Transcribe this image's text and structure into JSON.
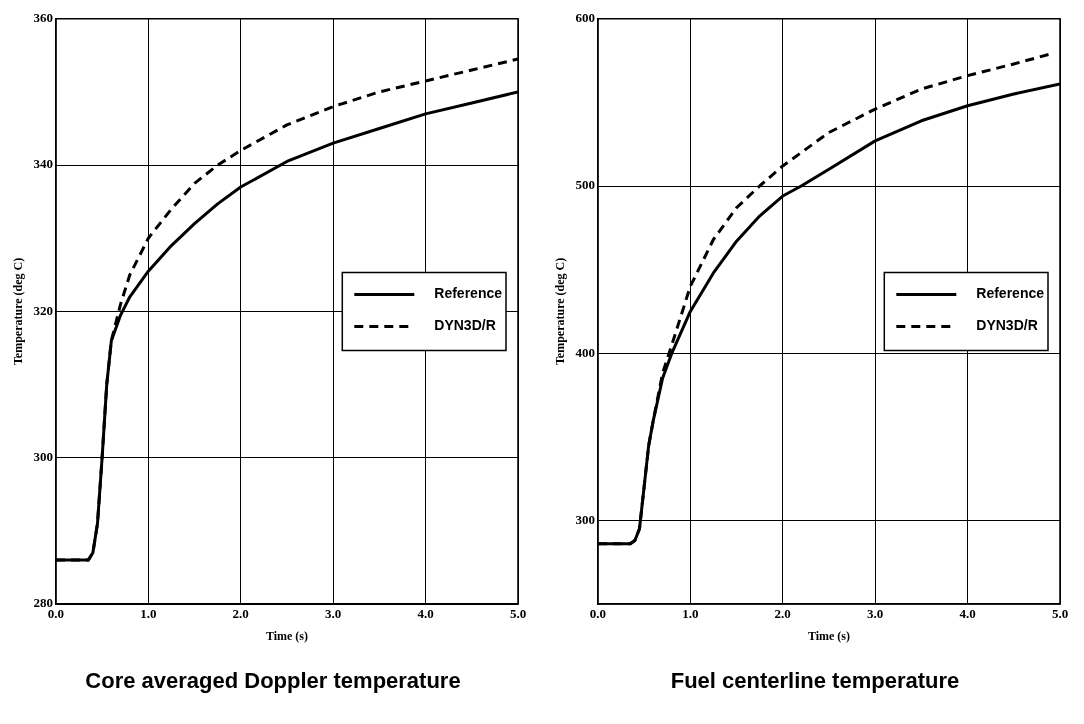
{
  "chart_data": [
    {
      "type": "line",
      "title": "Core averaged Doppler temperature",
      "xlabel": "Time (s)",
      "ylabel": "Temperature (deg C)",
      "xlim": [
        0,
        5
      ],
      "ylim": [
        280,
        360
      ],
      "xticks": [
        {
          "value": 0,
          "label": "0.0"
        },
        {
          "value": 1,
          "label": "1.0"
        },
        {
          "value": 2,
          "label": "2.0"
        },
        {
          "value": 3,
          "label": "3.0"
        },
        {
          "value": 4,
          "label": "4.0"
        },
        {
          "value": 5,
          "label": "5.0"
        }
      ],
      "yticks": [
        280,
        300,
        320,
        340,
        360
      ],
      "grid": true,
      "legend": "right",
      "marker": "none",
      "series": [
        {
          "name": "Reference",
          "color": "#000000",
          "line_style": "solid",
          "x": [
            0,
            0.35,
            0.4,
            0.45,
            0.5,
            0.55,
            0.6,
            0.7,
            0.8,
            1.0,
            1.25,
            1.5,
            1.75,
            2.0,
            2.5,
            3.0,
            3.5,
            4.0,
            4.5,
            5.0
          ],
          "values": [
            286,
            286,
            287,
            291,
            300,
            310,
            316,
            319.5,
            322,
            325.5,
            329,
            332,
            334.7,
            337,
            340.5,
            343,
            345,
            347,
            348.5,
            350
          ]
        },
        {
          "name": "DYN3D/R",
          "color": "#000000",
          "line_style": "dashed",
          "x": [
            0,
            0.35,
            0.4,
            0.45,
            0.5,
            0.55,
            0.6,
            0.7,
            0.8,
            1.0,
            1.25,
            1.5,
            1.75,
            2.0,
            2.5,
            3.0,
            3.5,
            4.0,
            4.5,
            5.0
          ],
          "values": [
            286,
            286,
            287,
            291,
            300,
            310,
            316,
            321,
            325,
            330,
            334,
            337.5,
            340,
            342,
            345.5,
            348,
            350,
            351.5,
            353,
            354.5
          ]
        }
      ]
    },
    {
      "type": "line",
      "title": "Fuel centerline temperature",
      "xlabel": "Time (s)",
      "ylabel": "Temperature (deg C)",
      "xlim": [
        0,
        5
      ],
      "ylim": [
        250,
        600
      ],
      "xticks": [
        {
          "value": 0,
          "label": "0.0"
        },
        {
          "value": 1,
          "label": "1.0"
        },
        {
          "value": 2,
          "label": "2.0"
        },
        {
          "value": 3,
          "label": "3.0"
        },
        {
          "value": 4,
          "label": "4.0"
        },
        {
          "value": 5,
          "label": "5.0"
        }
      ],
      "yticks": [
        300,
        400,
        500,
        600
      ],
      "grid": true,
      "legend": "right",
      "marker": "none",
      "series": [
        {
          "name": "Reference",
          "color": "#000000",
          "line_style": "solid",
          "x": [
            0,
            0.35,
            0.4,
            0.45,
            0.5,
            0.55,
            0.6,
            0.7,
            0.8,
            1.0,
            1.25,
            1.5,
            1.75,
            2.0,
            2.2,
            2.5,
            3.0,
            3.5,
            4.0,
            4.5,
            5.0
          ],
          "values": [
            286,
            286,
            288,
            295,
            320,
            345,
            360,
            385,
            400,
            425,
            448,
            467,
            482,
            494,
            500,
            510,
            527,
            539,
            548,
            555,
            561
          ]
        },
        {
          "name": "DYN3D/R",
          "color": "#000000",
          "line_style": "dashed",
          "x": [
            0,
            0.35,
            0.4,
            0.45,
            0.5,
            0.55,
            0.6,
            0.7,
            0.8,
            1.0,
            1.25,
            1.5,
            1.75,
            2.0,
            2.5,
            3.0,
            3.5,
            4.0,
            4.5,
            4.9
          ],
          "values": [
            286,
            286,
            288,
            295,
            320,
            345,
            360,
            388,
            405,
            440,
            468,
            487,
            500,
            512,
            532,
            546,
            558,
            566,
            573,
            579
          ]
        }
      ]
    }
  ]
}
